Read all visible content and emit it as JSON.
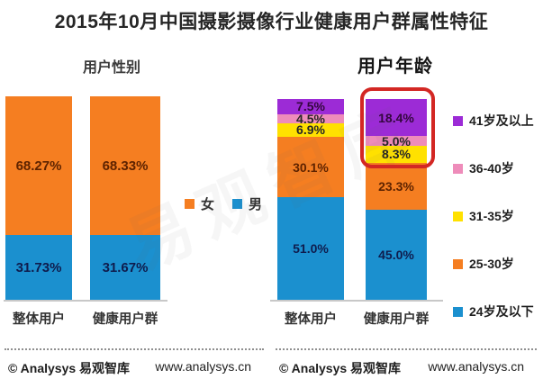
{
  "title": "2015年10月中国摄影摄像行业健康用户群属性特征",
  "watermark": "易观智库",
  "gender_chart": {
    "subtitle": "用户性别",
    "categories": [
      "整体用户",
      "健康用户群"
    ],
    "series": [
      {
        "name": "女",
        "color": "#F57E21",
        "label_color": "#5E2300",
        "values": [
          68.27,
          68.33
        ],
        "labels": [
          "68.27%",
          "68.33%"
        ]
      },
      {
        "name": "男",
        "color": "#1B90CF",
        "label_color": "#0F1C4D",
        "values": [
          31.73,
          31.67
        ],
        "labels": [
          "31.73%",
          "31.67%"
        ]
      }
    ]
  },
  "age_chart": {
    "subtitle": "用户年龄",
    "categories": [
      "整体用户",
      "健康用户群"
    ],
    "series": [
      {
        "name": "41岁及以上",
        "color": "#9C2BD6",
        "label_color": "#33073D",
        "values": [
          7.5,
          18.4
        ],
        "labels": [
          "7.5%",
          "18.4%"
        ]
      },
      {
        "name": "36-40岁",
        "color": "#EE8CBA",
        "label_color": "#262626",
        "values": [
          4.5,
          5.0
        ],
        "labels": [
          "4.5%",
          "5.0%"
        ]
      },
      {
        "name": "31-35岁",
        "color": "#FFE100",
        "label_color": "#262626",
        "values": [
          6.9,
          8.3
        ],
        "labels": [
          "6.9%",
          "8.3%"
        ]
      },
      {
        "name": "25-30岁",
        "color": "#F57E21",
        "label_color": "#5E2300",
        "values": [
          30.1,
          23.3
        ],
        "labels": [
          "30.1%",
          "23.3%"
        ]
      },
      {
        "name": "24岁及以下",
        "color": "#1B90CF",
        "label_color": "#0F1C4D",
        "values": [
          51.0,
          45.0
        ],
        "labels": [
          "51.0%",
          "45.0%"
        ]
      }
    ],
    "highlight": {
      "category": "健康用户群",
      "series": [
        "41岁及以上",
        "36-40岁",
        "31-35岁"
      ],
      "color": "#D32723"
    }
  },
  "footer": {
    "brand": "© Analysys 易观智库",
    "url": "www.analysys.cn"
  },
  "chart_data": [
    {
      "type": "bar",
      "stacked": true,
      "title": "用户性别",
      "categories": [
        "整体用户",
        "健康用户群"
      ],
      "series": [
        {
          "name": "女",
          "values": [
            68.27,
            68.33
          ]
        },
        {
          "name": "男",
          "values": [
            31.73,
            31.67
          ]
        }
      ],
      "unit": "%",
      "ylim": [
        0,
        100
      ],
      "grid": false,
      "legend_position": "right-of-chart"
    },
    {
      "type": "bar",
      "stacked": true,
      "title": "用户年龄",
      "categories": [
        "整体用户",
        "健康用户群"
      ],
      "series": [
        {
          "name": "41岁及以上",
          "values": [
            7.5,
            18.4
          ]
        },
        {
          "name": "36-40岁",
          "values": [
            4.5,
            5.0
          ]
        },
        {
          "name": "31-35岁",
          "values": [
            6.9,
            8.3
          ]
        },
        {
          "name": "25-30岁",
          "values": [
            30.1,
            23.3
          ]
        },
        {
          "name": "24岁及以下",
          "values": [
            51.0,
            45.0
          ]
        }
      ],
      "unit": "%",
      "ylim": [
        0,
        100
      ],
      "grid": false,
      "legend_position": "right",
      "annotation": "红色圆角框突出显示健康用户群柱中41岁及以上、36-40岁、31-35岁三段"
    }
  ]
}
